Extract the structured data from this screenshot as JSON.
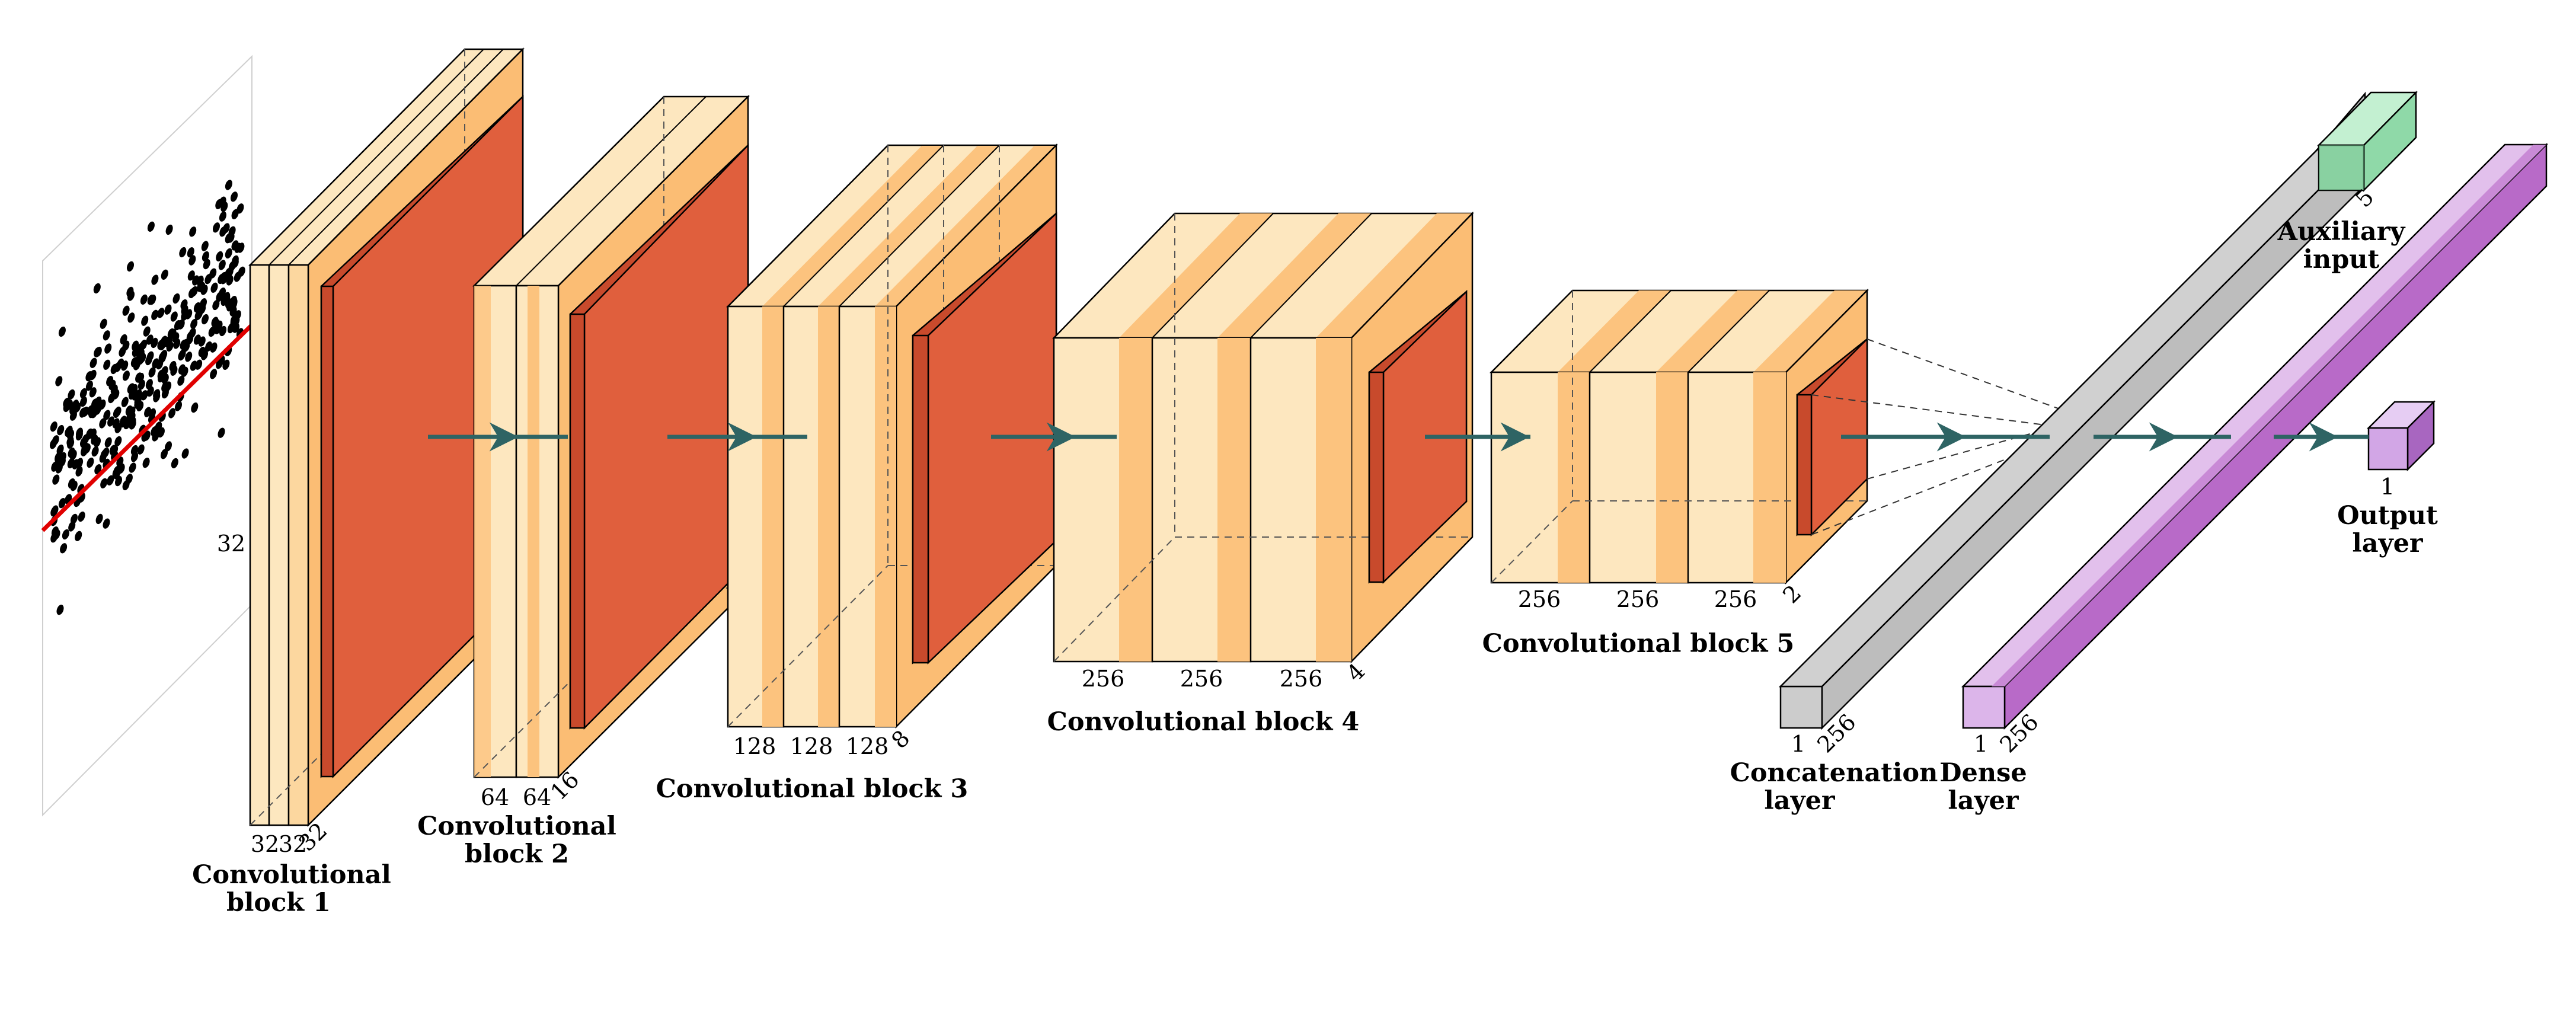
{
  "colors": {
    "conv_light": "#fde7bf",
    "conv_mid": "#fcc37e",
    "conv_side": "#fbbd74",
    "pool_front": "#e05f3d",
    "pool_side": "#c84a2c",
    "arrow": "#2e6464",
    "concat": "#cccccc",
    "aux": "#a8e6bd",
    "dense": "#c98ad6",
    "output": "#d2a6e6",
    "regression_line": "#e00000"
  },
  "input_image": {
    "dim_label": "32"
  },
  "blocks": [
    {
      "caption_lines": [
        "Convolutional",
        "block 1"
      ],
      "widths": [
        "32",
        "32"
      ],
      "depth": "32"
    },
    {
      "caption_lines": [
        "Convolutional",
        "block 2"
      ],
      "widths": [
        "64",
        "64"
      ],
      "depth": "16"
    },
    {
      "caption_lines": [
        "Convolutional block 3"
      ],
      "widths": [
        "128",
        "128",
        "128"
      ],
      "depth": "8"
    },
    {
      "caption_lines": [
        "Convolutional block 4"
      ],
      "widths": [
        "256",
        "256",
        "256"
      ],
      "depth": "4"
    },
    {
      "caption_lines": [
        "Convolutional block 5"
      ],
      "widths": [
        "256",
        "256",
        "256"
      ],
      "depth": "2"
    }
  ],
  "concat": {
    "caption_lines": [
      "Concatenation",
      "layer"
    ],
    "width": "1",
    "depth": "256"
  },
  "aux": {
    "caption_lines": [
      "Auxiliary",
      "input"
    ],
    "depth": "5"
  },
  "dense": {
    "caption_lines": [
      "Dense",
      "layer"
    ],
    "width": "1",
    "depth": "256"
  },
  "output": {
    "caption_lines": [
      "Output",
      "layer"
    ],
    "width": "1"
  }
}
